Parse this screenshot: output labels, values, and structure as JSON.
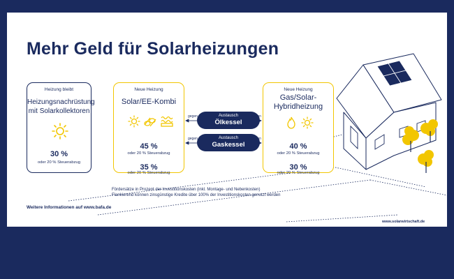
{
  "title": "Mehr Geld für Solarheizungen",
  "colors": {
    "navy": "#1a2a5e",
    "yellow": "#f2c600",
    "background": "#ffffff"
  },
  "card_left": {
    "head": "Heizung bleibt",
    "title_line1": "Heizungsnachrüstung",
    "title_line2": "mit Solarkollektoren",
    "icon": "sun-icon",
    "pct": "30 %",
    "sub": "oder 20 % Steuerabzug"
  },
  "card_mid": {
    "head": "Neue Heizung",
    "title": "Solar/EE-Kombi",
    "icons": [
      "sun-icon",
      "wood-pellets-icon",
      "heat-pump-icon"
    ],
    "pct1": "45 %",
    "sub1": "oder 20 % Steuerabzug",
    "pct2": "35 %",
    "sub2": "oder 20 % Steuerabzug"
  },
  "card_right": {
    "head": "Neue Heizung",
    "title_line1": "Gas/Solar-",
    "title_line2": "Hybridheizung",
    "icons": [
      "flame-icon",
      "sun-icon"
    ],
    "pct1": "40 %",
    "sub1": "oder 20 % Steuerabzug",
    "pct2": "30 %",
    "sub2": "oder 20 % Steuerabzug"
  },
  "exchange": [
    {
      "small": "Austausch",
      "big": "Ölkessel",
      "gegen_left": "gegen",
      "gegen_right": "gegen"
    },
    {
      "small": "Austausch",
      "big": "Gaskessel",
      "gegen_left": "gegen",
      "gegen_right": "gegen"
    }
  ],
  "note_line1": "Fördersätze in Prozent der Investitionskosten (inkl. Montage- und Nebenkosten)",
  "note_line2": "Flankierend können zinsgünstige Kredite über 100% der Investitionskosten genutzt werden",
  "footer_left": "Weitere Informationen auf www.bafa.de",
  "footer_right": "www.solarwirtschaft.de"
}
